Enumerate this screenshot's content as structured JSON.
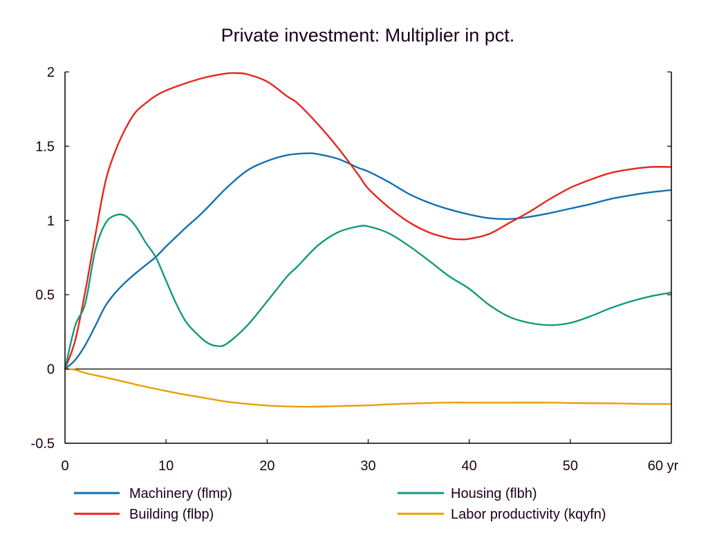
{
  "chart_data": {
    "type": "line",
    "title": "Private investment: Multiplier in pct.",
    "xlabel": "",
    "ylabel": "",
    "x_unit_label": "yr",
    "xlim": [
      0,
      60
    ],
    "ylim": [
      -0.5,
      2
    ],
    "x_ticks": [
      0,
      10,
      20,
      30,
      40,
      50,
      60
    ],
    "x_tick_labels": [
      "0",
      "10",
      "20",
      "30",
      "40",
      "50",
      "60 yr"
    ],
    "y_ticks": [
      -0.5,
      0,
      0.5,
      1,
      1.5,
      2
    ],
    "y_tick_labels": [
      "-0.5",
      "0",
      "0.5",
      "1",
      "1.5",
      "2"
    ],
    "grid": false,
    "zero_line": true,
    "legend_position": "bottom",
    "series": [
      {
        "name": "Machinery (flmp)",
        "color": "#1070b0",
        "x": [
          0,
          1,
          2,
          3,
          4,
          5,
          6,
          7,
          8,
          9,
          10,
          11,
          12,
          13,
          14,
          16,
          18,
          20,
          22,
          24,
          25,
          27,
          29,
          30,
          32,
          34,
          36,
          38,
          40,
          42,
          44,
          46,
          48,
          50,
          52,
          54,
          56,
          58,
          60
        ],
        "values": [
          0,
          0.06,
          0.16,
          0.29,
          0.425,
          0.515,
          0.585,
          0.645,
          0.7,
          0.755,
          0.825,
          0.89,
          0.955,
          1.015,
          1.08,
          1.22,
          1.335,
          1.4,
          1.44,
          1.452,
          1.447,
          1.415,
          1.355,
          1.33,
          1.26,
          1.18,
          1.12,
          1.075,
          1.04,
          1.015,
          1.01,
          1.025,
          1.05,
          1.08,
          1.11,
          1.145,
          1.17,
          1.19,
          1.205
        ]
      },
      {
        "name": "Building (flbp)",
        "color": "#e8241c",
        "x": [
          0,
          1,
          2,
          3,
          4,
          5,
          6,
          7,
          8,
          9,
          10,
          12,
          14,
          16,
          17,
          18,
          20,
          22,
          23,
          25,
          27,
          29,
          30,
          32,
          34,
          36,
          38,
          39,
          40,
          42,
          44,
          46,
          48,
          50,
          52,
          54,
          56,
          58,
          60
        ],
        "values": [
          0,
          0.19,
          0.52,
          0.9,
          1.26,
          1.47,
          1.62,
          1.73,
          1.79,
          1.84,
          1.875,
          1.925,
          1.965,
          1.99,
          1.992,
          1.985,
          1.935,
          1.835,
          1.79,
          1.65,
          1.49,
          1.31,
          1.215,
          1.09,
          0.99,
          0.92,
          0.88,
          0.873,
          0.876,
          0.91,
          0.985,
          1.06,
          1.145,
          1.22,
          1.275,
          1.32,
          1.345,
          1.36,
          1.36
        ]
      },
      {
        "name": "Housing (flbh)",
        "color": "#109a78",
        "x": [
          0,
          1,
          2,
          3,
          4,
          5,
          6,
          7,
          8,
          9,
          10,
          11,
          12,
          13,
          14,
          15,
          16,
          18,
          20,
          22,
          23,
          25,
          27,
          29,
          30,
          32,
          34,
          36,
          38,
          40,
          42,
          44,
          46,
          48,
          50,
          52,
          54,
          56,
          58,
          60
        ],
        "values": [
          0,
          0.29,
          0.44,
          0.8,
          0.98,
          1.035,
          1.03,
          0.96,
          0.85,
          0.75,
          0.595,
          0.44,
          0.315,
          0.24,
          0.18,
          0.155,
          0.17,
          0.29,
          0.455,
          0.625,
          0.69,
          0.83,
          0.92,
          0.96,
          0.96,
          0.915,
          0.83,
          0.73,
          0.625,
          0.54,
          0.43,
          0.35,
          0.31,
          0.295,
          0.31,
          0.355,
          0.41,
          0.455,
          0.49,
          0.515
        ]
      },
      {
        "name": "Labor productivity (kqyfn)",
        "color": "#e6a000",
        "x": [
          0,
          1,
          2,
          4,
          6,
          8,
          10,
          12,
          14,
          16,
          18,
          20,
          22,
          24,
          26,
          28,
          30,
          32,
          34,
          36,
          38,
          40,
          44,
          48,
          50,
          52,
          55,
          57,
          60
        ],
        "values": [
          0,
          -0.005,
          -0.027,
          -0.057,
          -0.088,
          -0.12,
          -0.148,
          -0.174,
          -0.197,
          -0.22,
          -0.235,
          -0.246,
          -0.252,
          -0.254,
          -0.252,
          -0.248,
          -0.245,
          -0.238,
          -0.233,
          -0.229,
          -0.226,
          -0.226,
          -0.226,
          -0.226,
          -0.229,
          -0.23,
          -0.232,
          -0.235,
          -0.236
        ]
      }
    ]
  }
}
